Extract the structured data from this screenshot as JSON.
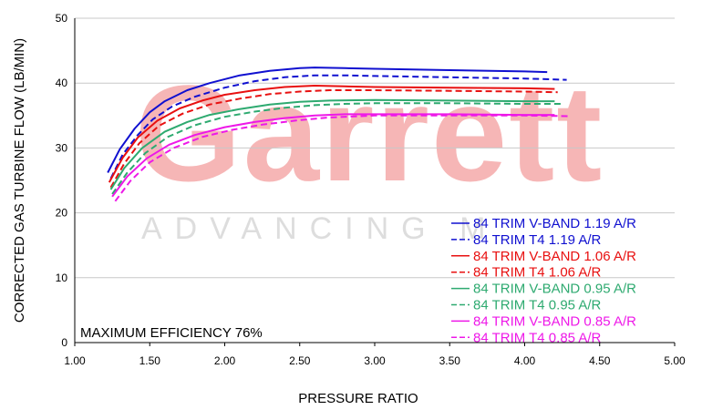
{
  "chart_data": {
    "type": "line",
    "xlabel": "PRESSURE RATIO",
    "ylabel": "CORRECTED GAS TURBINE FLOW (LB/MIN)",
    "xlim": [
      1.0,
      5.0
    ],
    "ylim": [
      0,
      50
    ],
    "x_ticks": [
      "1.00",
      "1.50",
      "2.00",
      "2.50",
      "3.00",
      "3.50",
      "4.00",
      "4.50",
      "5.00"
    ],
    "y_ticks": [
      "0",
      "10",
      "20",
      "30",
      "40",
      "50"
    ],
    "grid": "horizontal",
    "legend_position": "bottom-right",
    "annotation": "MAXIMUM EFFICIENCY 76%",
    "watermark": {
      "brand": "Garrett",
      "tagline": "ADVANCING M"
    },
    "series": [
      {
        "name": "84 TRIM V-BAND 1.19 A/R",
        "color": "#1010d0",
        "dash": "solid",
        "points": [
          [
            1.22,
            26.2
          ],
          [
            1.3,
            29.8
          ],
          [
            1.4,
            33.0
          ],
          [
            1.5,
            35.5
          ],
          [
            1.6,
            37.2
          ],
          [
            1.75,
            38.9
          ],
          [
            1.9,
            40.0
          ],
          [
            2.1,
            41.2
          ],
          [
            2.3,
            41.9
          ],
          [
            2.5,
            42.3
          ],
          [
            2.6,
            42.4
          ],
          [
            2.8,
            42.3
          ],
          [
            3.0,
            42.2
          ],
          [
            3.5,
            42.0
          ],
          [
            4.0,
            41.8
          ],
          [
            4.15,
            41.7
          ]
        ]
      },
      {
        "name": "84 TRIM T4 1.19 A/R",
        "color": "#1010d0",
        "dash": "dashed",
        "points": [
          [
            1.24,
            25.3
          ],
          [
            1.32,
            29.0
          ],
          [
            1.42,
            32.0
          ],
          [
            1.52,
            34.4
          ],
          [
            1.65,
            36.4
          ],
          [
            1.8,
            37.9
          ],
          [
            2.0,
            39.3
          ],
          [
            2.2,
            40.3
          ],
          [
            2.4,
            40.9
          ],
          [
            2.6,
            41.2
          ],
          [
            2.8,
            41.2
          ],
          [
            3.0,
            41.1
          ],
          [
            3.5,
            40.9
          ],
          [
            4.0,
            40.7
          ],
          [
            4.28,
            40.5
          ]
        ]
      },
      {
        "name": "84 TRIM V-BAND 1.06 A/R",
        "color": "#e81010",
        "dash": "solid",
        "points": [
          [
            1.23,
            24.7
          ],
          [
            1.32,
            28.5
          ],
          [
            1.42,
            31.6
          ],
          [
            1.55,
            34.2
          ],
          [
            1.7,
            36.1
          ],
          [
            1.85,
            37.3
          ],
          [
            2.0,
            38.2
          ],
          [
            2.2,
            38.9
          ],
          [
            2.4,
            39.4
          ],
          [
            2.6,
            39.6
          ],
          [
            2.8,
            39.5
          ],
          [
            3.0,
            39.4
          ],
          [
            3.5,
            39.3
          ],
          [
            4.0,
            39.2
          ],
          [
            4.2,
            39.1
          ]
        ]
      },
      {
        "name": "84 TRIM T4 1.06 A/R",
        "color": "#e81010",
        "dash": "dashed",
        "points": [
          [
            1.24,
            23.9
          ],
          [
            1.33,
            27.6
          ],
          [
            1.43,
            30.7
          ],
          [
            1.56,
            33.4
          ],
          [
            1.72,
            35.3
          ],
          [
            1.9,
            36.7
          ],
          [
            2.1,
            37.6
          ],
          [
            2.3,
            38.3
          ],
          [
            2.5,
            38.7
          ],
          [
            2.7,
            38.9
          ],
          [
            3.0,
            38.9
          ],
          [
            3.5,
            38.8
          ],
          [
            4.0,
            38.7
          ],
          [
            4.22,
            38.6
          ]
        ]
      },
      {
        "name": "84 TRIM V-BAND 0.95 A/R",
        "color": "#2eaa70",
        "dash": "solid",
        "points": [
          [
            1.24,
            23.6
          ],
          [
            1.33,
            26.9
          ],
          [
            1.45,
            30.0
          ],
          [
            1.6,
            32.5
          ],
          [
            1.75,
            34.0
          ],
          [
            1.9,
            35.1
          ],
          [
            2.1,
            36.0
          ],
          [
            2.3,
            36.7
          ],
          [
            2.5,
            37.1
          ],
          [
            2.7,
            37.3
          ],
          [
            3.0,
            37.4
          ],
          [
            3.5,
            37.3
          ],
          [
            4.0,
            37.2
          ],
          [
            4.2,
            37.2
          ]
        ]
      },
      {
        "name": "84 TRIM T4 0.95 A/R",
        "color": "#2eaa70",
        "dash": "dashed",
        "points": [
          [
            1.25,
            22.9
          ],
          [
            1.35,
            26.2
          ],
          [
            1.47,
            29.2
          ],
          [
            1.62,
            31.7
          ],
          [
            1.8,
            33.5
          ],
          [
            2.0,
            34.8
          ],
          [
            2.2,
            35.6
          ],
          [
            2.4,
            36.2
          ],
          [
            2.6,
            36.6
          ],
          [
            2.8,
            36.8
          ],
          [
            3.0,
            36.9
          ],
          [
            3.5,
            36.9
          ],
          [
            4.0,
            36.8
          ],
          [
            4.25,
            36.8
          ]
        ]
      },
      {
        "name": "84 TRIM V-BAND 0.85 A/R",
        "color": "#ee18e8",
        "dash": "solid",
        "points": [
          [
            1.25,
            22.5
          ],
          [
            1.35,
            25.6
          ],
          [
            1.48,
            28.4
          ],
          [
            1.63,
            30.5
          ],
          [
            1.8,
            32.0
          ],
          [
            2.0,
            33.2
          ],
          [
            2.2,
            34.0
          ],
          [
            2.4,
            34.6
          ],
          [
            2.6,
            35.0
          ],
          [
            2.8,
            35.2
          ],
          [
            3.0,
            35.2
          ],
          [
            3.5,
            35.2
          ],
          [
            4.0,
            35.1
          ],
          [
            4.2,
            35.1
          ]
        ]
      },
      {
        "name": "84 TRIM T4 0.85 A/R",
        "color": "#ee18e8",
        "dash": "dashed",
        "points": [
          [
            1.27,
            21.8
          ],
          [
            1.37,
            24.9
          ],
          [
            1.5,
            27.8
          ],
          [
            1.66,
            30.0
          ],
          [
            1.85,
            31.7
          ],
          [
            2.05,
            32.8
          ],
          [
            2.25,
            33.6
          ],
          [
            2.5,
            34.3
          ],
          [
            2.7,
            34.7
          ],
          [
            3.0,
            35.0
          ],
          [
            3.5,
            35.0
          ],
          [
            4.0,
            35.0
          ],
          [
            4.3,
            34.9
          ]
        ]
      }
    ]
  }
}
